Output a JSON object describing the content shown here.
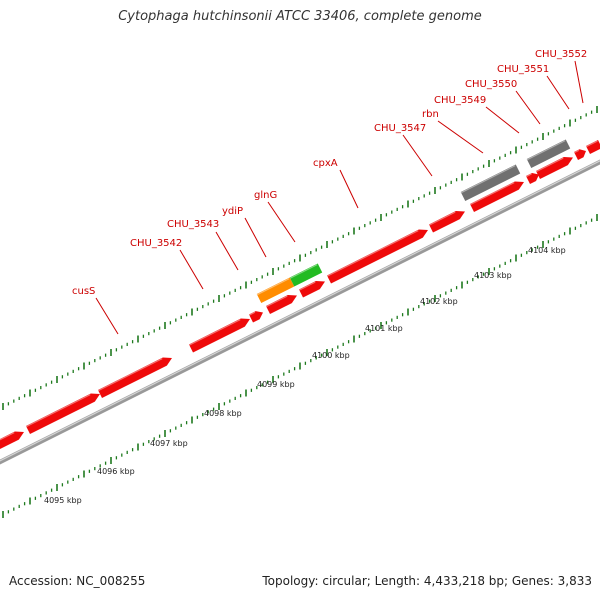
{
  "title": "Cytophaga hutchinsonii ATCC 33406, complete genome",
  "footer": {
    "accession": "Accession: NC_008255",
    "stats": "Topology: circular; Length: 4,433,218 bp; Genes: 3,833"
  },
  "colors": {
    "cds": "#ee0a0a",
    "trna": "#ff8c00",
    "rrna": "#22bb22",
    "other": "#707070",
    "backbone": "#999999",
    "tick": "#1f7a1f",
    "label": "#cc0000"
  },
  "genes": [
    {
      "name": "cusS",
      "type": "cds"
    },
    {
      "name": "CHU_3542",
      "type": "cds"
    },
    {
      "name": "CHU_3543",
      "type": "cds"
    },
    {
      "name": "ydiP",
      "type": "trna"
    },
    {
      "name": "glnG",
      "type": "rrna"
    },
    {
      "name": "cpxA",
      "type": "cds"
    },
    {
      "name": "CHU_3547",
      "type": "cds"
    },
    {
      "name": "rbn",
      "type": "other"
    },
    {
      "name": "CHU_3549",
      "type": "other"
    },
    {
      "name": "CHU_3550",
      "type": "cds"
    },
    {
      "name": "CHU_3551",
      "type": "cds"
    },
    {
      "name": "CHU_3552",
      "type": "cds"
    }
  ],
  "kbp_labels": [
    "4095 kbp",
    "4096 kbp",
    "4097 kbp",
    "4098 kbp",
    "4099 kbp",
    "4100 kbp",
    "4101 kbp",
    "4102 kbp",
    "4103 kbp",
    "4104 kbp"
  ]
}
